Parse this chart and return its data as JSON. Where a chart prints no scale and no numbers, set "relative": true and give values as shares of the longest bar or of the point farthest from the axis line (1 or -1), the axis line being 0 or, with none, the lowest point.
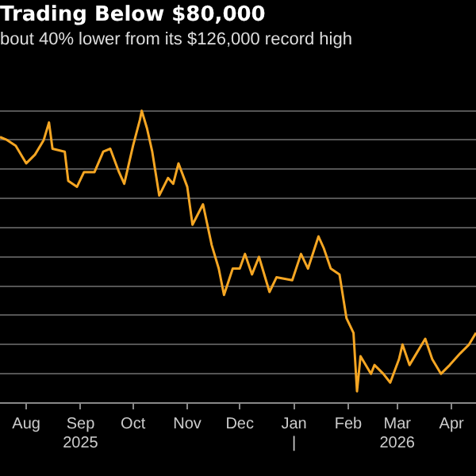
{
  "chart_data": {
    "type": "line",
    "title": "Trading Below $80,000",
    "subtitle": "bout 40% lower from its $126,000 record high",
    "relative": true,
    "grid": "y",
    "legend": false,
    "marker": "none",
    "line_style": "solid",
    "xlim": [
      "2025-07-17",
      "2026-04-15"
    ],
    "xticks": [
      {
        "value": "2025-08-01",
        "label": "Aug"
      },
      {
        "value": "2025-09-01",
        "label": "Sep\n2025"
      },
      {
        "value": "2025-10-01",
        "label": "Oct"
      },
      {
        "value": "2025-11-01",
        "label": "Nov"
      },
      {
        "value": "2025-12-01",
        "label": "Dec"
      },
      {
        "value": "2026-01-01",
        "label": "Jan\n|"
      },
      {
        "value": "2026-02-01",
        "label": "Feb"
      },
      {
        "value": "2026-03-01",
        "label": "Mar\n2026"
      },
      {
        "value": "2026-04-01",
        "label": "Apr"
      }
    ],
    "x": [
      "2025-07-17",
      "2025-07-21",
      "2025-07-26",
      "2025-08-01",
      "2025-08-06",
      "2025-08-11",
      "2025-08-14",
      "2025-08-16",
      "2025-08-23",
      "2025-08-25",
      "2025-08-30",
      "2025-09-03",
      "2025-09-09",
      "2025-09-14",
      "2025-09-18",
      "2025-09-23",
      "2025-09-26",
      "2025-10-01",
      "2025-10-05",
      "2025-10-06",
      "2025-10-09",
      "2025-10-12",
      "2025-10-16",
      "2025-10-21",
      "2025-10-24",
      "2025-10-27",
      "2025-11-01",
      "2025-11-04",
      "2025-11-10",
      "2025-11-15",
      "2025-11-19",
      "2025-11-22",
      "2025-11-27",
      "2025-12-01",
      "2025-12-04",
      "2025-12-08",
      "2025-12-12",
      "2025-12-18",
      "2025-12-22",
      "2025-12-31",
      "2026-01-05",
      "2026-01-09",
      "2026-01-15",
      "2026-01-18",
      "2026-01-22",
      "2026-01-27",
      "2026-01-31",
      "2026-02-04",
      "2026-02-06",
      "2026-02-08",
      "2026-02-14",
      "2026-02-16",
      "2026-02-21",
      "2026-02-25",
      "2026-03-02",
      "2026-03-04",
      "2026-03-08",
      "2026-03-12",
      "2026-03-17",
      "2026-03-21",
      "2026-03-26",
      "2026-03-31",
      "2026-04-06",
      "2026-04-11",
      "2026-04-15"
    ],
    "series": [
      {
        "color": "#f5a623",
        "values": [
          0.91,
          0.9,
          0.88,
          0.82,
          0.85,
          0.9,
          0.96,
          0.87,
          0.86,
          0.76,
          0.74,
          0.79,
          0.79,
          0.86,
          0.87,
          0.79,
          0.75,
          0.88,
          0.97,
          1.0,
          0.94,
          0.86,
          0.71,
          0.77,
          0.75,
          0.82,
          0.74,
          0.61,
          0.68,
          0.54,
          0.46,
          0.37,
          0.46,
          0.46,
          0.51,
          0.44,
          0.5,
          0.38,
          0.43,
          0.42,
          0.51,
          0.46,
          0.57,
          0.53,
          0.46,
          0.44,
          0.29,
          0.24,
          0.04,
          0.16,
          0.1,
          0.13,
          0.1,
          0.07,
          0.15,
          0.2,
          0.13,
          0.17,
          0.22,
          0.15,
          0.1,
          0.13,
          0.17,
          0.2,
          0.24
        ]
      }
    ]
  }
}
